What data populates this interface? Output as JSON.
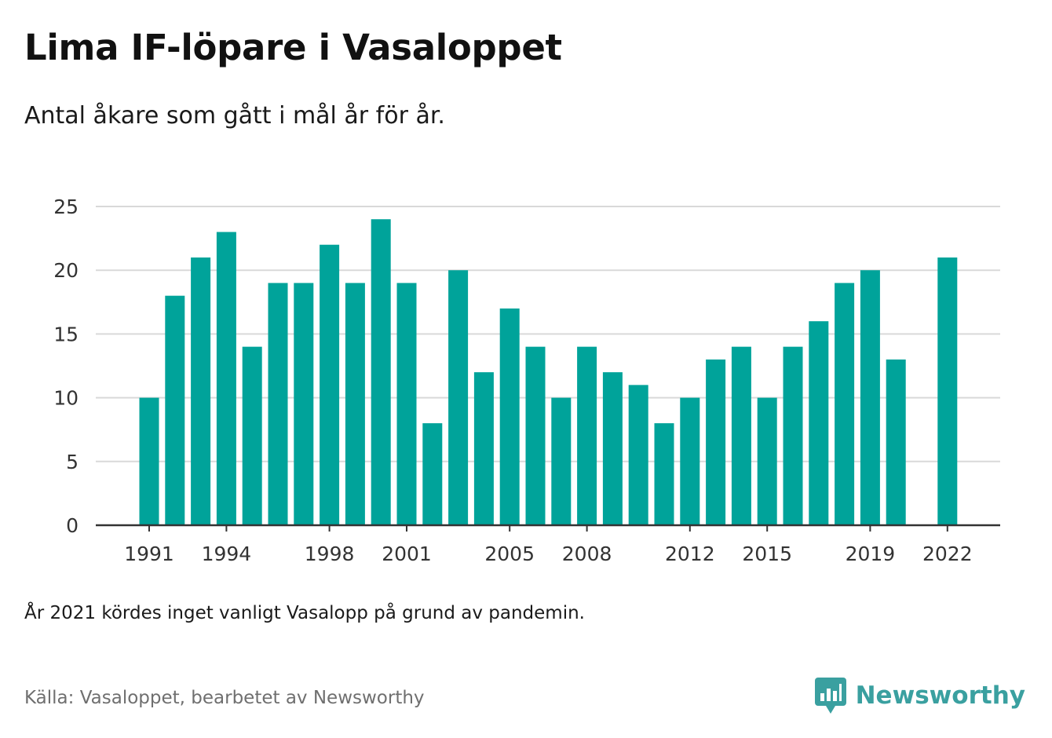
{
  "title": "Lima IF-löpare i Vasaloppet",
  "subtitle": "Antal åkare som gått i mål år för år.",
  "note": "År 2021 kördes inget vanligt Vasalopp på grund av pandemin.",
  "source": "Källa: Vasaloppet, bearbetet av Newsworthy",
  "logo": {
    "text": "Newsworthy",
    "icon": "newsworthy-chart-icon"
  },
  "colors": {
    "bar": "#00a39a",
    "grid": "#d9d9d9",
    "axis": "#333333",
    "logo": "#3aa0a0"
  },
  "chart_data": {
    "type": "bar",
    "categories": [
      "1991",
      "1992",
      "1993",
      "1994",
      "1995",
      "1996",
      "1997",
      "1998",
      "1999",
      "2000",
      "2001",
      "2002",
      "2003",
      "2004",
      "2005",
      "2006",
      "2007",
      "2008",
      "2009",
      "2010",
      "2011",
      "2012",
      "2013",
      "2014",
      "2015",
      "2016",
      "2017",
      "2018",
      "2019",
      "2020",
      "2021",
      "2022"
    ],
    "values": [
      10,
      18,
      21,
      23,
      14,
      19,
      19,
      22,
      19,
      24,
      19,
      8,
      20,
      12,
      17,
      14,
      10,
      14,
      12,
      11,
      8,
      10,
      13,
      14,
      10,
      14,
      16,
      19,
      20,
      13,
      null,
      21
    ],
    "xticks": [
      "1991",
      "1994",
      "1998",
      "2001",
      "2005",
      "2008",
      "2012",
      "2015",
      "2019",
      "2022"
    ],
    "yticks": [
      0,
      5,
      10,
      15,
      20,
      25
    ],
    "ylim": [
      0,
      25
    ],
    "grid": true
  }
}
